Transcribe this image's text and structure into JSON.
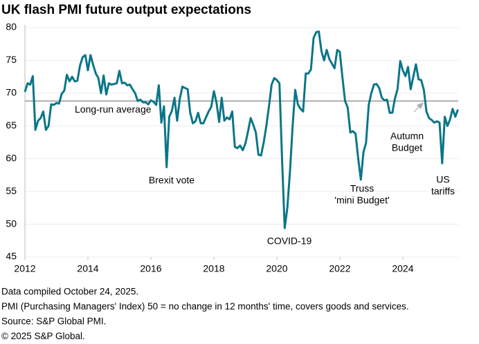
{
  "chart_data": {
    "type": "line",
    "title": "UK flash PMI future output expectations",
    "x": [
      2012,
      2012.083,
      2012.167,
      2012.25,
      2012.333,
      2012.417,
      2012.5,
      2012.583,
      2012.667,
      2012.75,
      2012.833,
      2012.917,
      2013,
      2013.083,
      2013.167,
      2013.25,
      2013.333,
      2013.417,
      2013.5,
      2013.583,
      2013.667,
      2013.75,
      2013.833,
      2013.917,
      2014,
      2014.083,
      2014.167,
      2014.25,
      2014.333,
      2014.417,
      2014.5,
      2014.583,
      2014.667,
      2014.75,
      2014.833,
      2014.917,
      2015,
      2015.083,
      2015.167,
      2015.25,
      2015.333,
      2015.417,
      2015.5,
      2015.583,
      2015.667,
      2015.75,
      2015.833,
      2015.917,
      2016,
      2016.083,
      2016.167,
      2016.25,
      2016.333,
      2016.417,
      2016.5,
      2016.583,
      2016.667,
      2016.75,
      2016.833,
      2016.917,
      2017,
      2017.083,
      2017.167,
      2017.25,
      2017.333,
      2017.417,
      2017.5,
      2017.583,
      2017.667,
      2017.75,
      2017.833,
      2017.917,
      2018,
      2018.083,
      2018.167,
      2018.25,
      2018.333,
      2018.417,
      2018.5,
      2018.583,
      2018.667,
      2018.75,
      2018.833,
      2018.917,
      2019,
      2019.083,
      2019.167,
      2019.25,
      2019.333,
      2019.417,
      2019.5,
      2019.583,
      2019.667,
      2019.75,
      2019.833,
      2019.917,
      2020,
      2020.083,
      2020.167,
      2020.25,
      2020.333,
      2020.417,
      2020.5,
      2020.583,
      2020.667,
      2020.75,
      2020.833,
      2020.917,
      2021,
      2021.083,
      2021.167,
      2021.25,
      2021.333,
      2021.417,
      2021.5,
      2021.583,
      2021.667,
      2021.75,
      2021.833,
      2021.917,
      2022,
      2022.083,
      2022.167,
      2022.25,
      2022.333,
      2022.417,
      2022.5,
      2022.583,
      2022.667,
      2022.75,
      2022.833,
      2022.917,
      2023,
      2023.083,
      2023.167,
      2023.25,
      2023.333,
      2023.417,
      2023.5,
      2023.583,
      2023.667,
      2023.75,
      2023.833,
      2023.917,
      2024,
      2024.083,
      2024.167,
      2024.25,
      2024.333,
      2024.417,
      2024.5,
      2024.583,
      2024.667,
      2024.75,
      2024.833,
      2024.917,
      2025,
      2025.083,
      2025.167,
      2025.25,
      2025.333,
      2025.417,
      2025.5,
      2025.583,
      2025.667,
      2025.75
    ],
    "series": [
      {
        "color": "#0b7588",
        "values": [
          70.2,
          71.5,
          71.3,
          72.6,
          64.4,
          65.8,
          66.2,
          67.2,
          64.4,
          65.0,
          68.3,
          68.2,
          68.5,
          68.4,
          69.9,
          70.4,
          72.8,
          71.8,
          72.5,
          71.8,
          71.9,
          74.2,
          75.5,
          75.8,
          73.5,
          75.8,
          74.3,
          73.0,
          72.3,
          70.0,
          72.7,
          69.8,
          71.5,
          71.3,
          71.4,
          71.5,
          73.4,
          71.5,
          71.6,
          71.2,
          71.3,
          70.6,
          70.0,
          68.8,
          69.0,
          68.6,
          68.6,
          68.3,
          68.9,
          68.7,
          68.2,
          71.2,
          65.5,
          68.0,
          58.7,
          66.4,
          67.3,
          69.3,
          65.8,
          69.1,
          71.0,
          70.8,
          70.6,
          67.0,
          65.4,
          65.7,
          67.0,
          65.4,
          65.4,
          66.3,
          67.2,
          67.9,
          70.3,
          68.6,
          65.6,
          69.3,
          65.8,
          66.3,
          66.0,
          67.2,
          61.8,
          61.6,
          62.0,
          61.3,
          62.3,
          64.1,
          66.2,
          65.2,
          64.0,
          60.6,
          60.5,
          62.5,
          65.0,
          68.0,
          71.3,
          72.3,
          72.0,
          71.5,
          59.6,
          49.4,
          52.5,
          58.0,
          64.9,
          70.5,
          68.3,
          67.6,
          67.2,
          73.0,
          73.0,
          73.6,
          78.4,
          79.3,
          79.4,
          76.4,
          75.0,
          76.6,
          75.2,
          74.5,
          73.8,
          76.6,
          76.3,
          72.4,
          68.8,
          67.8,
          64.0,
          64.2,
          63.8,
          60.0,
          56.8,
          61.0,
          62.4,
          68.2,
          70.0,
          71.3,
          71.4,
          70.8,
          69.3,
          68.9,
          69.0,
          67.0,
          67.0,
          69.2,
          70.6,
          74.9,
          73.5,
          72.6,
          74.0,
          70.6,
          72.5,
          74.4,
          72.1,
          72.0,
          70.5,
          67.2,
          66.2,
          65.9,
          65.5,
          65.7,
          65.5,
          59.3,
          66.4,
          65.0,
          66.0,
          67.6,
          66.4,
          67.5
        ]
      }
    ],
    "xlim": [
      2012,
      2025.76
    ],
    "xticks": [
      2012,
      2014,
      2016,
      2018,
      2020,
      2022,
      2024
    ],
    "ylim": [
      45,
      80
    ],
    "yticks": [
      45,
      50,
      55,
      60,
      65,
      70,
      75,
      80
    ],
    "grid": true,
    "reference_line": {
      "value": 68.8,
      "label": "Long-run average"
    },
    "annotations": [
      {
        "lines": [
          "Brexit vote"
        ]
      },
      {
        "lines": [
          "COVID-19"
        ]
      },
      {
        "lines": [
          "Truss",
          "'mini Budget'"
        ]
      },
      {
        "lines": [
          "Autumn",
          "Budget"
        ]
      },
      {
        "lines": [
          "US",
          "tariffs"
        ]
      }
    ],
    "notes": [
      "Data compiled October 24, 2025.",
      "PMI (Purchasing Managers' Index) 50 = no change in 12 months' time, covers goods and services.",
      "Source: S&P Global PMI.",
      "© 2025 S&P Global."
    ]
  }
}
